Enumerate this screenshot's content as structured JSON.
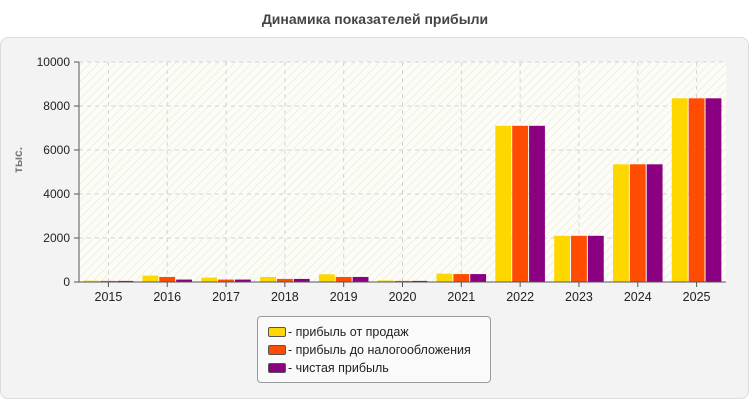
{
  "chart_data": {
    "type": "bar",
    "title": "Динамика показателей прибыли",
    "ylabel": "тыс.",
    "xlabel": "",
    "ylim": [
      0,
      10000
    ],
    "yticks": [
      0,
      2000,
      4000,
      6000,
      8000,
      10000
    ],
    "grid": true,
    "legend_position": "bottom-center",
    "categories": [
      "2015",
      "2016",
      "2017",
      "2018",
      "2019",
      "2020",
      "2021",
      "2022",
      "2023",
      "2024",
      "2025"
    ],
    "series": [
      {
        "name": "прибыль от продаж",
        "color": "#FFD700",
        "values": [
          60,
          290,
          200,
          230,
          350,
          70,
          380,
          7100,
          2100,
          5350,
          8350
        ]
      },
      {
        "name": "прибыль до налогообложения",
        "color": "#FF4C00",
        "values": [
          50,
          230,
          110,
          140,
          230,
          50,
          360,
          7100,
          2100,
          5350,
          8350
        ]
      },
      {
        "name": "чистая прибыль",
        "color": "#8B0080",
        "values": [
          50,
          110,
          110,
          140,
          230,
          50,
          360,
          7100,
          2100,
          5350,
          8350
        ]
      }
    ]
  }
}
